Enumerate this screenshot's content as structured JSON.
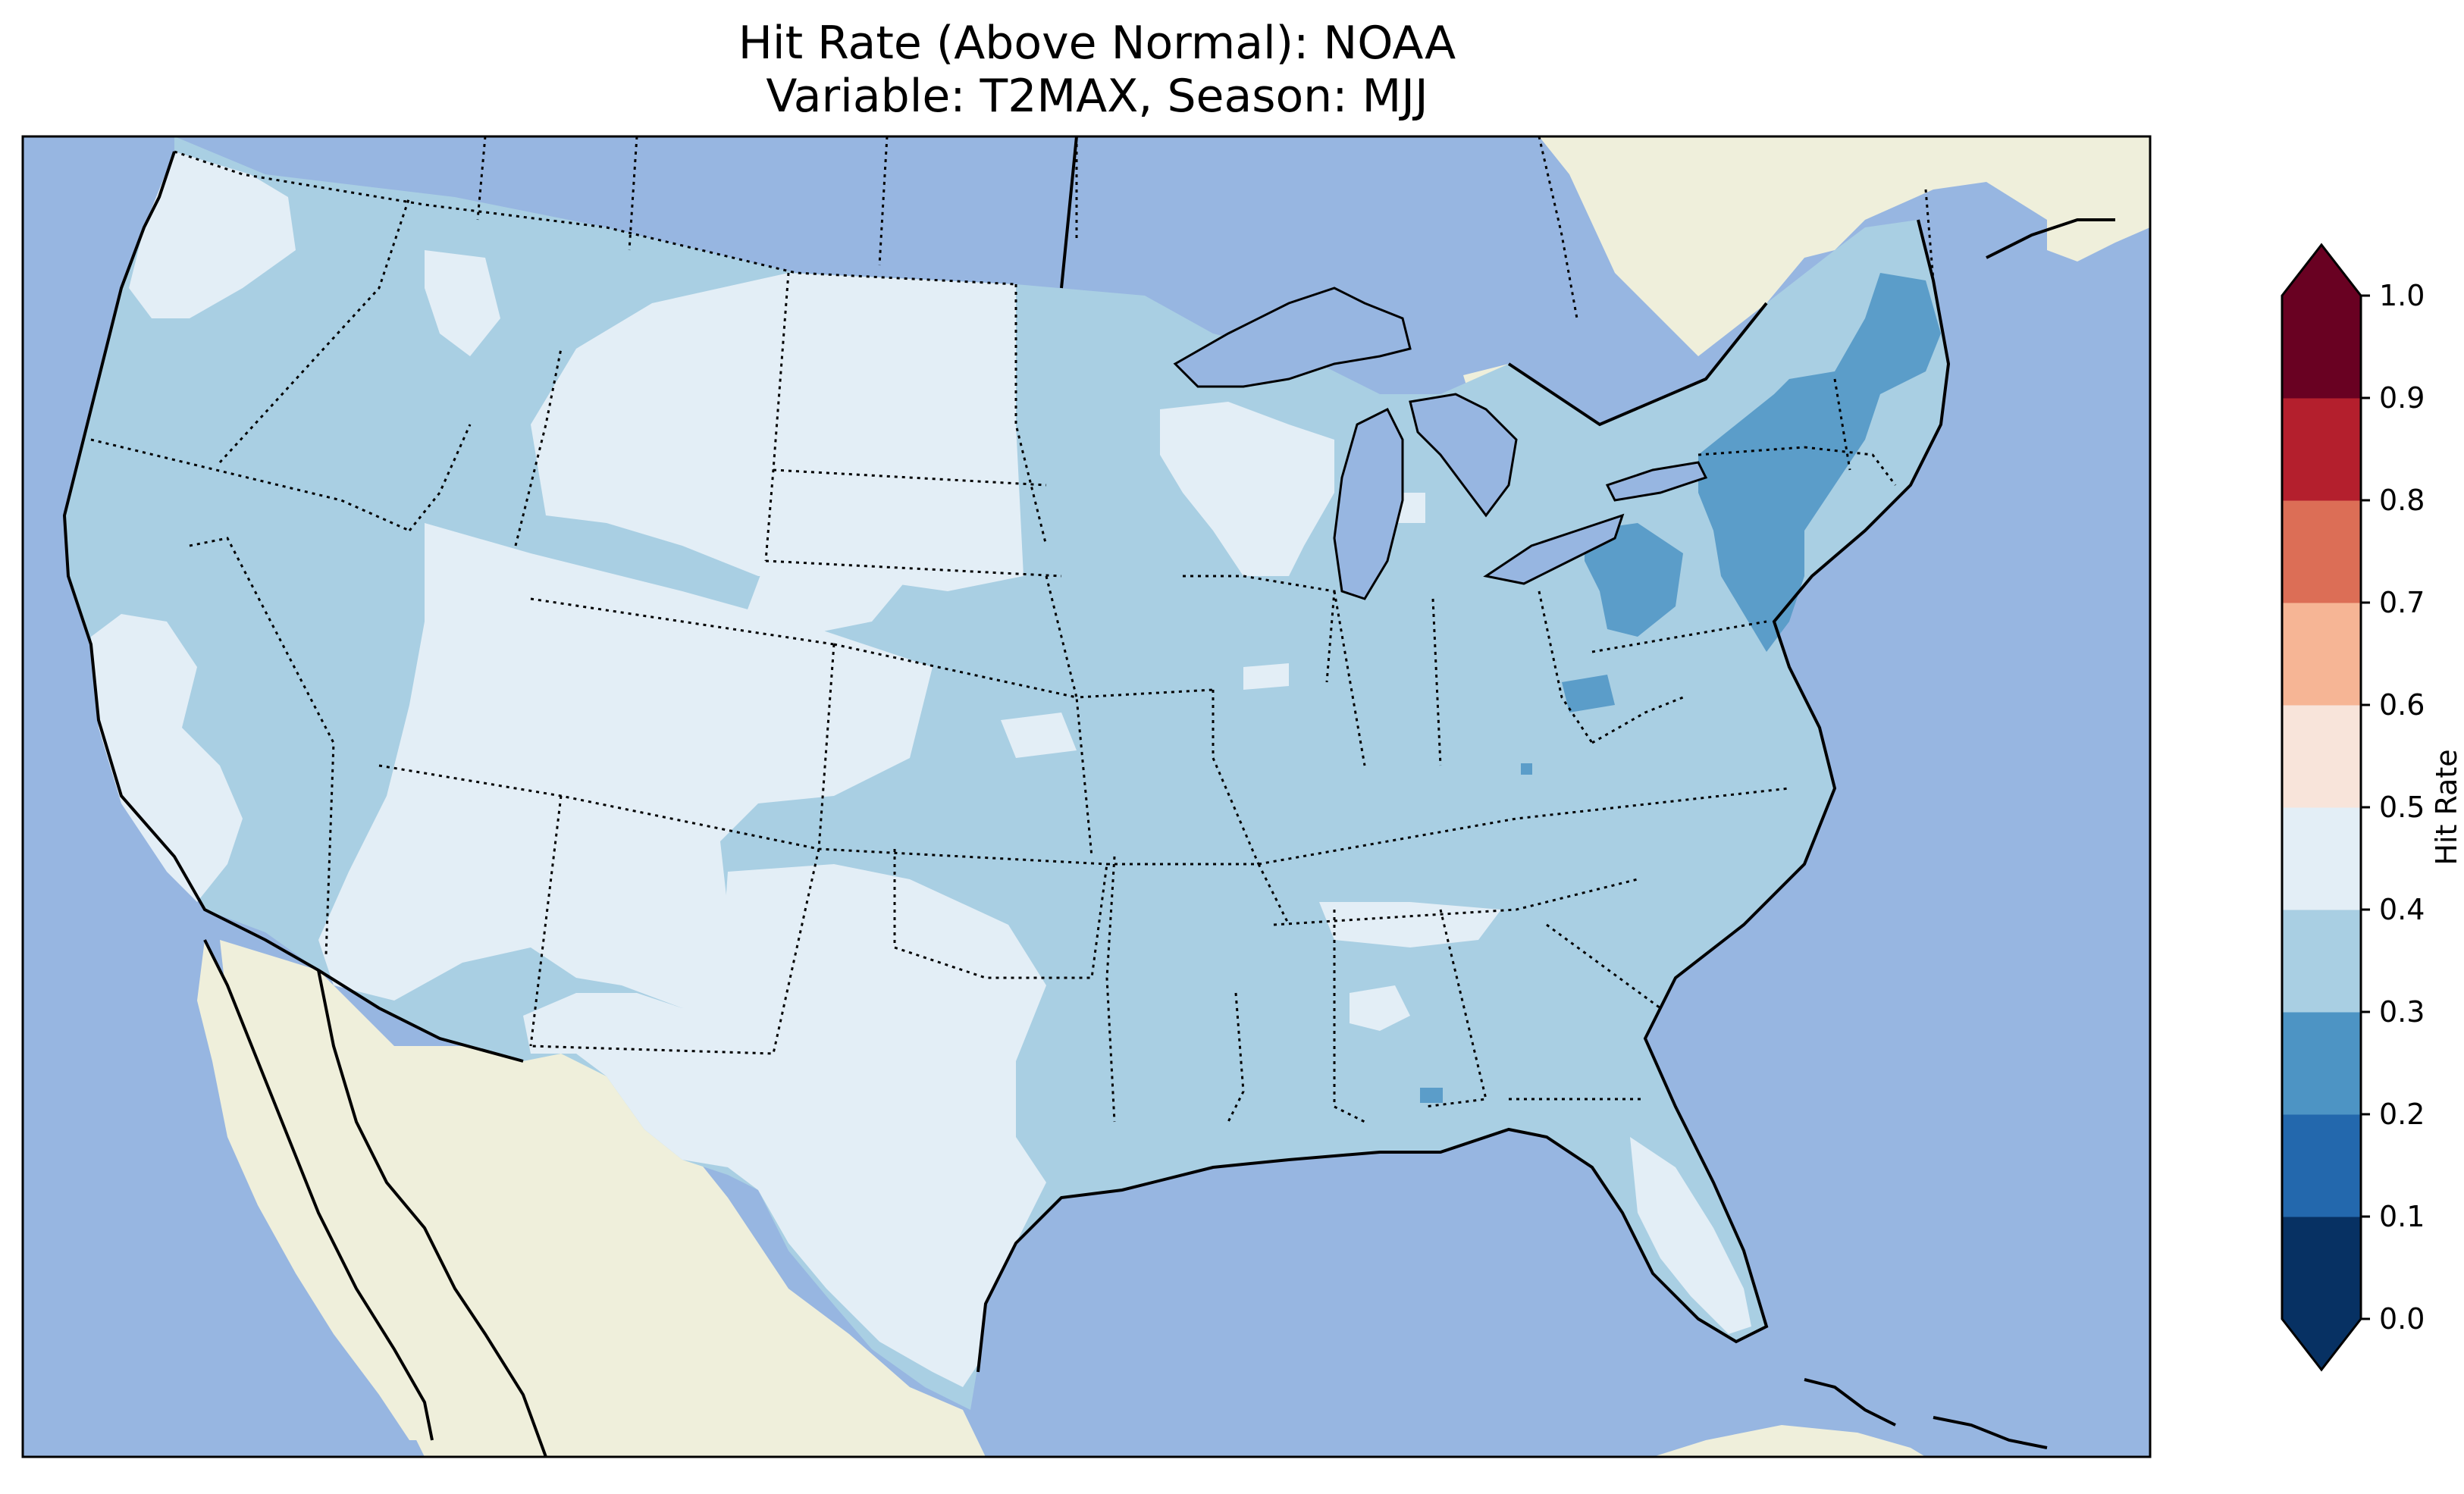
{
  "title": {
    "line1": "Hit Rate (Above Normal): NOAA",
    "line2": "Variable: T2MAX, Season: MJJ"
  },
  "map": {
    "ocean_color": "#97b6e1",
    "land_color": "#efefdb",
    "coastline_color": "#000000",
    "border_style": "dotted",
    "value_classes": [
      {
        "range": "0.2-0.3",
        "color": "#5b9dc9",
        "regions": [
          "New England / Mid-Atlantic",
          "Western Pennsylvania",
          "West Virginia patch",
          "Alabama/Florida panhandle patch"
        ]
      },
      {
        "range": "0.3-0.4",
        "color": "#a9cfe3",
        "regions": [
          "Pacific Northwest",
          "Northern Rockies",
          "Upper Midwest",
          "Central Plains",
          "Southeast",
          "Ohio Valley"
        ]
      },
      {
        "range": "0.4-0.5",
        "color": "#e3eef6",
        "regions": [
          "Southwest",
          "Northern Great Plains",
          "Texas",
          "Wisconsin",
          "Florida peninsula"
        ]
      }
    ]
  },
  "colorbar": {
    "label": "Hit Rate",
    "extend": "both",
    "ticks": [
      "0.0",
      "0.1",
      "0.2",
      "0.3",
      "0.4",
      "0.5",
      "0.6",
      "0.7",
      "0.8",
      "0.9",
      "1.0"
    ],
    "colors": [
      "#073163",
      "#2368ad",
      "#4d94c4",
      "#a9cfe3",
      "#e3eef6",
      "#f8e4da",
      "#f6b595",
      "#dc6e56",
      "#b41f2d",
      "#690122"
    ],
    "under_color": "#073163",
    "over_color": "#690122"
  }
}
